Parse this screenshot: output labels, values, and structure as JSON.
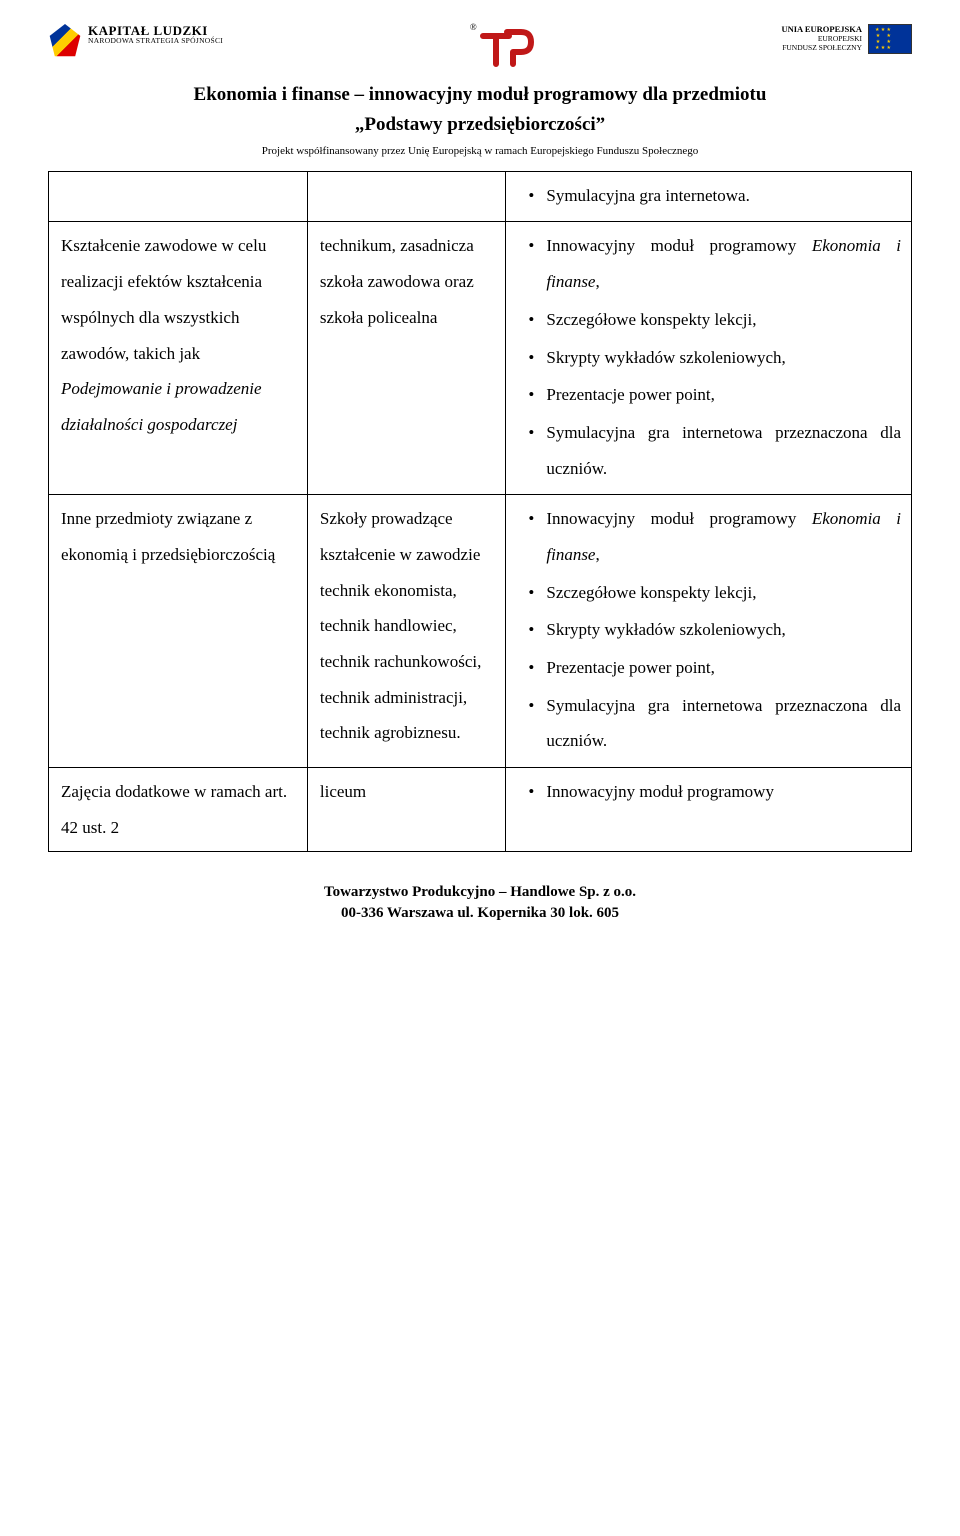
{
  "header": {
    "kapital_line1": "KAPITAŁ LUDZKI",
    "kapital_line2": "NARODOWA STRATEGIA SPÓJNOŚCI",
    "eu_line1": "UNIA EUROPEJSKA",
    "eu_line2": "EUROPEJSKI",
    "eu_line3": "FUNDUSZ SPOŁECZNY"
  },
  "title": {
    "line1": "Ekonomia i finanse – innowacyjny moduł programowy dla przedmiotu",
    "line2": "„Podstawy przedsiębiorczości”",
    "subtitle": "Projekt współfinansowany przez Unię Europejską w ramach Europejskiego Funduszu Społecznego"
  },
  "row0": {
    "col3_item": "Symulacyjna gra internetowa."
  },
  "row1": {
    "col1_plain1": "Kształcenie zawodowe w celu realizacji efektów kształcenia wspólnych dla wszystkich zawodów, takich jak ",
    "col1_italic": "Podejmowanie  i prowadzenie działalności gospodarczej",
    "col2": "technikum, zasadnicza szkoła zawodowa oraz szkoła policealna",
    "col3_items": [
      "Innowacyjny moduł programowy <em>Ekonomia i finanse</em>,",
      "Szczegółowe konspekty lekcji,",
      "Skrypty wykładów szkoleniowych,",
      "Prezentacje power point,",
      "Symulacyjna gra internetowa przeznaczona dla uczniów."
    ]
  },
  "row2": {
    "col1": "Inne przedmioty związane z ekonomią i przedsiębiorczością",
    "col2": "Szkoły prowadzące kształcenie w zawodzie technik ekonomista, technik handlowiec, technik rachunkowości, technik administracji, technik agrobiznesu.",
    "col3_items": [
      "Innowacyjny moduł programowy <em>Ekonomia i finanse</em>,",
      "Szczegółowe konspekty lekcji,",
      "Skrypty wykładów szkoleniowych,",
      "Prezentacje power point,",
      "Symulacyjna gra internetowa przeznaczona dla uczniów."
    ]
  },
  "row3": {
    "col1": "Zajęcia dodatkowe w ramach art. 42 ust. 2",
    "col2": "liceum",
    "col3_item": "Innowacyjny moduł programowy"
  },
  "footer": {
    "line1": "Towarzystwo Produkcyjno – Handlowe Sp. z o.o.",
    "line2": "00-336 Warszawa   ul. Kopernika 30 lok. 605"
  }
}
